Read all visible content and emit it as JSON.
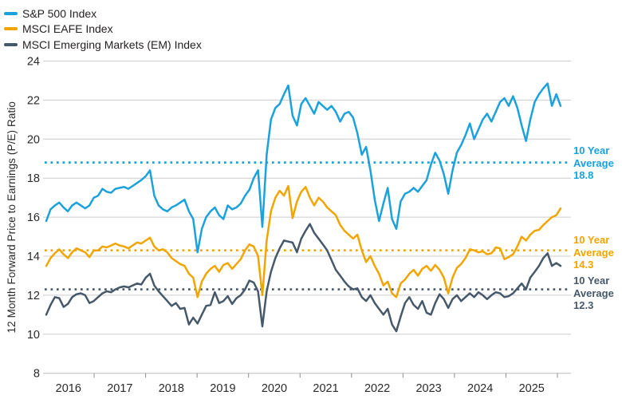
{
  "legend": {
    "items": [
      {
        "label": "S&P 500 Index",
        "color": "#1BA1DC"
      },
      {
        "label": "MSCI EAFE Index",
        "color": "#F0A500"
      },
      {
        "label": "MSCI Emerging Markets (EM) Index",
        "color": "#46596B"
      }
    ]
  },
  "y_axis_title": "12 Month Forward Price to Earnings (P/E) Ratio",
  "annotations": [
    {
      "line1": "10 Year",
      "line2": "Average",
      "value": "18.8",
      "color": "#1BA1DC"
    },
    {
      "line1": "10 Year",
      "line2": "Average",
      "value": "14.3",
      "color": "#F0A500"
    },
    {
      "line1": "10 Year",
      "line2": "Average",
      "value": "12.3",
      "color": "#46596B"
    }
  ],
  "chart_data": {
    "type": "line",
    "title": "",
    "xlabel": "",
    "ylabel": "12 Month Forward Price to Earnings (P/E) Ratio",
    "ylim": [
      8,
      24
    ],
    "y_ticks": [
      24,
      22,
      20,
      18,
      16,
      14,
      12,
      10,
      8
    ],
    "x_tick_years": [
      "2016",
      "2017",
      "2018",
      "2019",
      "2020",
      "2021",
      "2022",
      "2023",
      "2024",
      "2025"
    ],
    "x_start": "2016-01",
    "x_end": "2025-12",
    "frequency": "monthly",
    "grid": "horizontal",
    "legend_position": "top-left",
    "colors": {
      "grid": "#cccccc",
      "axis": "#bdbdbd",
      "tick": "#8c8c8c",
      "text": "#2b2a29"
    },
    "series": [
      {
        "name": "S&P 500 Index",
        "color": "#1BA1DC",
        "ten_year_average": 18.8,
        "values": [
          15.8,
          16.4,
          16.6,
          16.75,
          16.5,
          16.3,
          16.6,
          16.75,
          16.6,
          16.45,
          16.6,
          17.0,
          17.1,
          17.45,
          17.3,
          17.25,
          17.45,
          17.5,
          17.55,
          17.45,
          17.6,
          17.75,
          17.9,
          18.1,
          18.4,
          17.1,
          16.6,
          16.4,
          16.3,
          16.5,
          16.6,
          16.75,
          16.9,
          16.3,
          15.9,
          14.2,
          15.4,
          16.0,
          16.3,
          16.5,
          16.1,
          15.9,
          16.6,
          16.4,
          16.5,
          16.7,
          17.1,
          17.4,
          18.0,
          18.4,
          15.5,
          19.2,
          21.0,
          21.6,
          21.8,
          22.3,
          22.75,
          21.2,
          20.7,
          21.8,
          22.1,
          21.7,
          21.3,
          21.9,
          21.7,
          21.5,
          21.7,
          21.4,
          20.9,
          21.3,
          21.4,
          21.1,
          20.3,
          19.2,
          19.6,
          18.4,
          16.9,
          15.8,
          16.7,
          17.5,
          15.9,
          15.4,
          16.8,
          17.2,
          17.3,
          17.5,
          17.3,
          17.6,
          17.9,
          18.7,
          19.3,
          18.9,
          18.2,
          17.2,
          18.4,
          19.3,
          19.7,
          20.2,
          20.8,
          20.0,
          20.5,
          21.0,
          21.3,
          20.9,
          21.4,
          21.9,
          22.1,
          21.7,
          22.2,
          21.6,
          20.7,
          19.9,
          21.0,
          21.9,
          22.3,
          22.6,
          22.85,
          21.7,
          22.3,
          21.7
        ]
      },
      {
        "name": "MSCI EAFE Index",
        "color": "#F0A500",
        "ten_year_average": 14.3,
        "values": [
          13.5,
          13.9,
          14.15,
          14.35,
          14.1,
          13.9,
          14.2,
          14.4,
          14.3,
          14.2,
          13.95,
          14.3,
          14.3,
          14.5,
          14.45,
          14.55,
          14.65,
          14.55,
          14.5,
          14.4,
          14.55,
          14.7,
          14.65,
          14.8,
          14.95,
          14.5,
          14.3,
          14.35,
          14.2,
          13.9,
          13.75,
          13.6,
          13.5,
          13.1,
          12.9,
          11.9,
          12.7,
          13.1,
          13.35,
          13.5,
          13.2,
          13.55,
          13.65,
          13.35,
          13.6,
          13.85,
          14.3,
          14.6,
          14.5,
          14.0,
          12.0,
          14.8,
          16.3,
          17.0,
          17.35,
          17.1,
          17.6,
          15.95,
          16.8,
          17.3,
          17.55,
          17.0,
          16.6,
          17.0,
          16.8,
          16.5,
          16.3,
          16.1,
          15.6,
          15.3,
          15.1,
          14.9,
          15.1,
          14.3,
          13.7,
          14.0,
          13.5,
          13.1,
          12.5,
          12.7,
          12.1,
          11.9,
          12.6,
          12.8,
          13.1,
          13.3,
          13.0,
          13.35,
          13.5,
          13.25,
          13.55,
          13.3,
          12.9,
          12.1,
          12.9,
          13.4,
          13.6,
          13.9,
          14.35,
          14.3,
          14.2,
          14.25,
          14.1,
          14.15,
          14.45,
          14.4,
          13.85,
          13.95,
          14.1,
          14.5,
          15.0,
          14.8,
          15.1,
          15.3,
          15.35,
          15.6,
          15.8,
          16.0,
          16.1,
          16.45
        ]
      },
      {
        "name": "MSCI Emerging Markets (EM) Index",
        "color": "#46596B",
        "ten_year_average": 12.3,
        "values": [
          11.0,
          11.5,
          11.9,
          11.85,
          11.4,
          11.55,
          11.9,
          12.05,
          12.1,
          12.0,
          11.6,
          11.7,
          11.9,
          12.1,
          12.2,
          12.15,
          12.3,
          12.4,
          12.45,
          12.4,
          12.5,
          12.6,
          12.55,
          12.9,
          13.1,
          12.5,
          12.2,
          11.95,
          11.7,
          11.45,
          11.6,
          11.3,
          11.35,
          10.5,
          10.85,
          10.55,
          11.0,
          11.45,
          11.5,
          12.15,
          11.6,
          11.7,
          11.95,
          11.55,
          11.85,
          12.0,
          12.3,
          12.75,
          12.65,
          12.2,
          10.4,
          12.2,
          13.2,
          13.9,
          14.4,
          14.8,
          14.75,
          14.7,
          14.2,
          14.9,
          15.3,
          15.65,
          15.2,
          14.9,
          14.6,
          14.3,
          13.8,
          13.3,
          13.0,
          12.7,
          12.45,
          12.3,
          12.35,
          11.9,
          11.7,
          12.0,
          11.6,
          11.3,
          11.0,
          11.3,
          10.5,
          10.15,
          10.9,
          11.6,
          11.9,
          11.5,
          11.3,
          11.7,
          11.1,
          11.0,
          11.6,
          12.05,
          11.8,
          11.35,
          11.8,
          12.0,
          11.7,
          11.9,
          12.1,
          11.9,
          12.15,
          12.0,
          11.8,
          12.0,
          12.15,
          12.1,
          11.9,
          11.95,
          12.1,
          12.35,
          12.6,
          12.3,
          12.9,
          13.2,
          13.5,
          13.9,
          14.15,
          13.5,
          13.65,
          13.5
        ]
      }
    ]
  }
}
